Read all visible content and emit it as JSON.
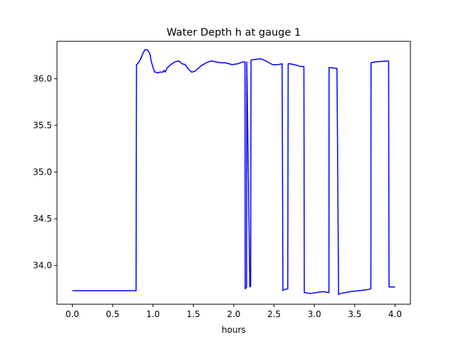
{
  "chart_data": {
    "type": "line",
    "title": "Water Depth h at gauge 1",
    "xlabel": "hours",
    "ylabel": "",
    "xlim": [
      -0.19,
      4.19
    ],
    "ylim": [
      33.585,
      36.4
    ],
    "xticks": [
      0.0,
      0.5,
      1.0,
      1.5,
      2.0,
      2.5,
      3.0,
      3.5,
      4.0
    ],
    "xtick_labels": [
      "0.0",
      "0.5",
      "1.0",
      "1.5",
      "2.0",
      "2.5",
      "3.0",
      "3.5",
      "4.0"
    ],
    "yticks": [
      34.0,
      34.5,
      35.0,
      35.5,
      36.0
    ],
    "ytick_labels": [
      "34.0",
      "34.5",
      "35.0",
      "35.5",
      "36.0"
    ],
    "grid": false,
    "legend": "none",
    "series": [
      {
        "color": "#0000ff",
        "x": [
          0.0,
          0.79,
          0.795,
          0.81,
          0.84,
          0.88,
          0.9,
          0.93,
          0.96,
          0.98,
          1.0,
          1.02,
          1.04,
          1.06,
          1.08,
          1.12,
          1.14,
          1.15,
          1.18,
          1.22,
          1.27,
          1.32,
          1.36,
          1.4,
          1.44,
          1.48,
          1.52,
          1.6,
          1.66,
          1.72,
          1.78,
          1.84,
          1.9,
          1.98,
          2.05,
          2.12,
          2.14,
          2.142,
          2.16,
          2.162,
          2.2,
          2.21,
          2.215,
          2.3,
          2.35,
          2.42,
          2.48,
          2.55,
          2.6,
          2.61,
          2.615,
          2.67,
          2.675,
          2.7,
          2.8,
          2.82,
          2.87,
          2.875,
          2.95,
          3.1,
          3.18,
          3.182,
          3.28,
          3.3,
          3.32,
          3.45,
          3.65,
          3.7,
          3.702,
          3.75,
          3.92,
          3.925,
          4.0
        ],
        "y": [
          33.73,
          33.73,
          36.15,
          36.16,
          36.2,
          36.28,
          36.31,
          36.31,
          36.27,
          36.18,
          36.12,
          36.07,
          36.07,
          36.06,
          36.07,
          36.07,
          36.09,
          36.07,
          36.12,
          36.15,
          36.18,
          36.19,
          36.16,
          36.15,
          36.1,
          36.07,
          36.08,
          36.14,
          36.17,
          36.19,
          36.18,
          36.17,
          36.17,
          36.15,
          36.16,
          36.18,
          36.18,
          33.75,
          33.77,
          36.18,
          33.77,
          33.78,
          36.2,
          36.21,
          36.21,
          36.18,
          36.15,
          36.15,
          36.16,
          33.73,
          33.74,
          33.75,
          36.16,
          36.16,
          36.14,
          36.13,
          36.13,
          33.71,
          33.7,
          33.72,
          33.71,
          36.12,
          36.11,
          33.69,
          33.7,
          33.72,
          33.74,
          33.75,
          36.17,
          36.18,
          36.19,
          33.77,
          33.77
        ]
      }
    ]
  }
}
